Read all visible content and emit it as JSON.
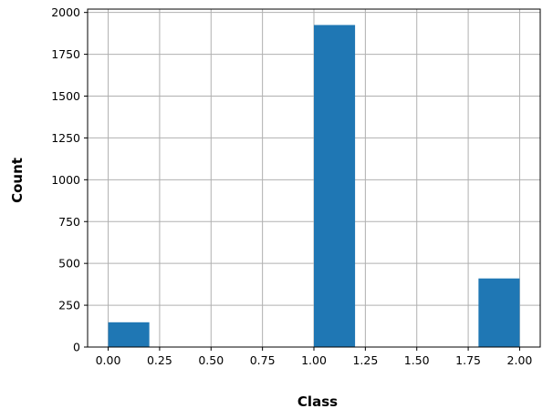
{
  "chart_data": {
    "type": "bar",
    "title": "",
    "xlabel": "Class",
    "ylabel": "Count",
    "xlim": [
      -0.1,
      2.1
    ],
    "ylim": [
      0,
      2020
    ],
    "grid": true,
    "bar_color": "#1f77b4",
    "grid_color": "#b0b0b0",
    "bins": [
      {
        "x0": 0.0,
        "x1": 0.2,
        "value": 148
      },
      {
        "x0": 1.0,
        "x1": 1.2,
        "value": 1925
      },
      {
        "x0": 1.8,
        "x1": 2.0,
        "value": 410
      }
    ],
    "xticks": [
      {
        "value": 0.0,
        "label": "0.00"
      },
      {
        "value": 0.25,
        "label": "0.25"
      },
      {
        "value": 0.5,
        "label": "0.50"
      },
      {
        "value": 0.75,
        "label": "0.75"
      },
      {
        "value": 1.0,
        "label": "1.00"
      },
      {
        "value": 1.25,
        "label": "1.25"
      },
      {
        "value": 1.5,
        "label": "1.50"
      },
      {
        "value": 1.75,
        "label": "1.75"
      },
      {
        "value": 2.0,
        "label": "2.00"
      }
    ],
    "yticks": [
      {
        "value": 0,
        "label": "0"
      },
      {
        "value": 250,
        "label": "250"
      },
      {
        "value": 500,
        "label": "500"
      },
      {
        "value": 750,
        "label": "750"
      },
      {
        "value": 1000,
        "label": "1000"
      },
      {
        "value": 1250,
        "label": "1250"
      },
      {
        "value": 1500,
        "label": "1500"
      },
      {
        "value": 1750,
        "label": "1750"
      },
      {
        "value": 2000,
        "label": "2000"
      }
    ]
  }
}
